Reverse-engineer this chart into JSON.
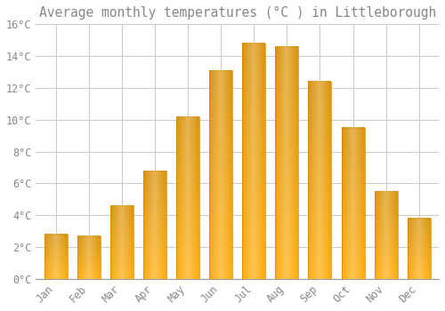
{
  "title": "Average monthly temperatures (°C ) in Littleborough",
  "months": [
    "Jan",
    "Feb",
    "Mar",
    "Apr",
    "May",
    "Jun",
    "Jul",
    "Aug",
    "Sep",
    "Oct",
    "Nov",
    "Dec"
  ],
  "values": [
    2.8,
    2.7,
    4.6,
    6.8,
    10.2,
    13.1,
    14.8,
    14.6,
    12.4,
    9.5,
    5.5,
    3.8
  ],
  "bar_color": "#FFA500",
  "bar_face_color": "#FFD050",
  "bar_edge_color": "#E08000",
  "background_color": "#FFFFFF",
  "grid_color": "#CCCCCC",
  "text_color": "#888888",
  "ylim": [
    0,
    16
  ],
  "yticks": [
    0,
    2,
    4,
    6,
    8,
    10,
    12,
    14,
    16
  ],
  "ytick_labels": [
    "0°C",
    "2°C",
    "4°C",
    "6°C",
    "8°C",
    "10°C",
    "12°C",
    "14°C",
    "16°C"
  ],
  "title_fontsize": 10.5,
  "tick_fontsize": 8.5
}
